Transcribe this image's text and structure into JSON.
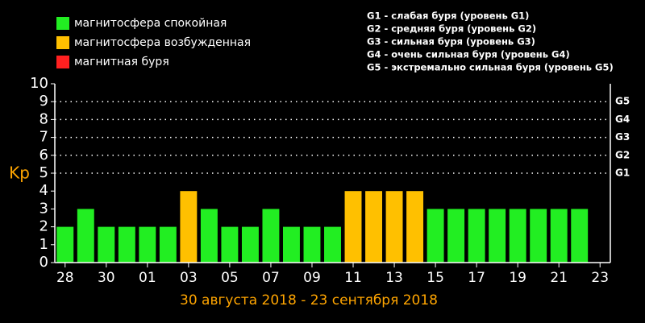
{
  "chart_data": {
    "type": "bar",
    "axis_label": "Kp",
    "subtitle": "30 августа 2018 - 23 сентября 2018",
    "legend": [
      {
        "name": "магнитосфера спокойная",
        "color": "#22ee22"
      },
      {
        "name": "магнитосфера возбужденная",
        "color": "#ffc000"
      },
      {
        "name": "магнитная буря",
        "color": "#ff2020"
      }
    ],
    "storm_notes": [
      "G1 - слабая буря (уровень G1)",
      "G2 - средняя буря (уровень G2)",
      "G3 - сильная буря (уровень G3)",
      "G4 - очень сильная буря (уровень G4)",
      "G5 - экстремально сильная буря (уровень G5)"
    ],
    "storm_levels": [
      {
        "value": 5,
        "label": "G1"
      },
      {
        "value": 6,
        "label": "G2"
      },
      {
        "value": 7,
        "label": "G3"
      },
      {
        "value": 8,
        "label": "G4"
      },
      {
        "value": 9,
        "label": "G5"
      }
    ],
    "categories": [
      "28",
      null,
      "30",
      null,
      "01",
      null,
      "03",
      null,
      "05",
      null,
      "07",
      null,
      "09",
      null,
      "11",
      null,
      "13",
      null,
      "15",
      null,
      "17",
      null,
      "19",
      null,
      "21",
      null,
      "23"
    ],
    "values": [
      2,
      3,
      2,
      2,
      2,
      2,
      4,
      3,
      2,
      2,
      3,
      2,
      2,
      2,
      4,
      4,
      4,
      4,
      3,
      3,
      3,
      3,
      3,
      3,
      3,
      3,
      null
    ],
    "colors": [
      "#22ee22",
      "#22ee22",
      "#22ee22",
      "#22ee22",
      "#22ee22",
      "#22ee22",
      "#ffc000",
      "#22ee22",
      "#22ee22",
      "#22ee22",
      "#22ee22",
      "#22ee22",
      "#22ee22",
      "#22ee22",
      "#ffc000",
      "#ffc000",
      "#ffc000",
      "#ffc000",
      "#22ee22",
      "#22ee22",
      "#22ee22",
      "#22ee22",
      "#22ee22",
      "#22ee22",
      "#22ee22",
      "#22ee22",
      null
    ],
    "ylim": [
      0,
      10
    ],
    "yticks": [
      0,
      1,
      2,
      3,
      4,
      5,
      6,
      7,
      8,
      9,
      10
    ]
  }
}
